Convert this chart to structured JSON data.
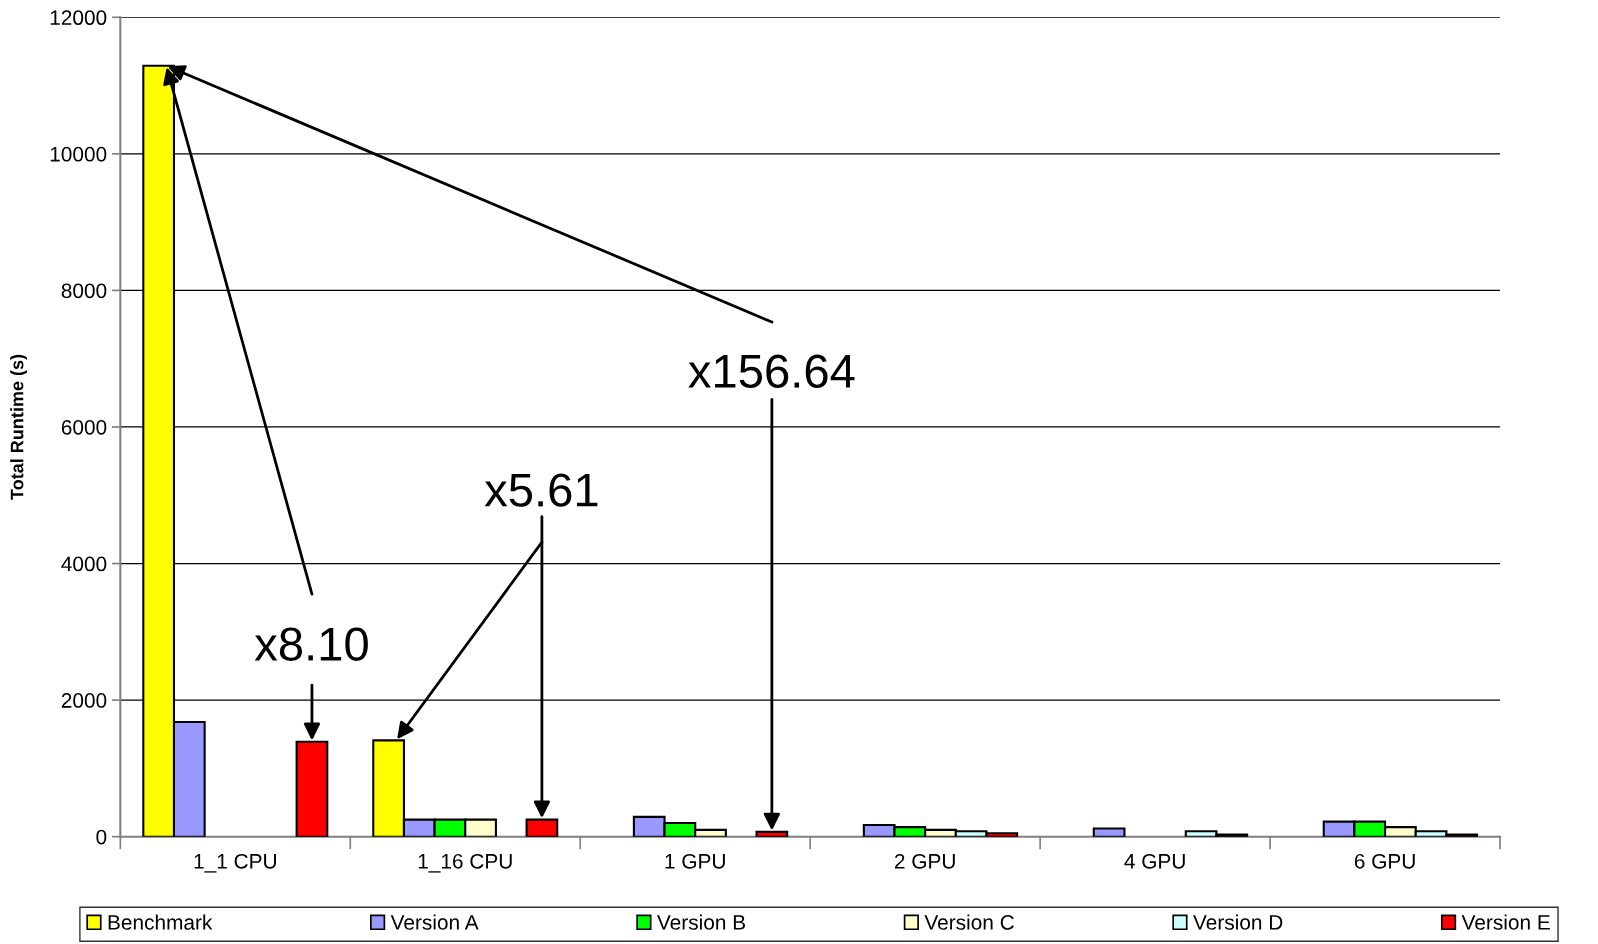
{
  "chart_data": {
    "type": "bar",
    "ylabel": "Total Runtime (s)",
    "categories": [
      "1_1 CPU",
      "1_16 CPU",
      "1 GPU",
      "2 GPU",
      "4 GPU",
      "6 GPU"
    ],
    "series": [
      {
        "name": "Benchmark",
        "color": "#ffff00",
        "values": [
          11290,
          1410,
          null,
          null,
          null,
          null
        ]
      },
      {
        "name": "Version A",
        "color": "#9999ff",
        "values": [
          1680,
          250,
          290,
          170,
          120,
          220
        ]
      },
      {
        "name": "Version B",
        "color": "#00ff00",
        "values": [
          null,
          250,
          200,
          140,
          null,
          220
        ]
      },
      {
        "name": "Version C",
        "color": "#ffffcc",
        "values": [
          null,
          250,
          100,
          100,
          null,
          140
        ]
      },
      {
        "name": "Version D",
        "color": "#ccffff",
        "values": [
          null,
          null,
          null,
          80,
          80,
          80
        ]
      },
      {
        "name": "Version E",
        "color": "#ff0000",
        "values": [
          1390,
          250,
          70,
          50,
          30,
          30
        ]
      }
    ],
    "ylim": [
      0,
      12000
    ],
    "yticks": [
      0,
      2000,
      4000,
      6000,
      8000,
      10000,
      12000
    ],
    "grid": "y",
    "legend": "bottom",
    "annotations": [
      {
        "text": "x8.10",
        "y": 1390
      },
      {
        "text": "x5.61",
        "y": 250
      },
      {
        "text": "x156.64",
        "y": 70
      }
    ]
  }
}
